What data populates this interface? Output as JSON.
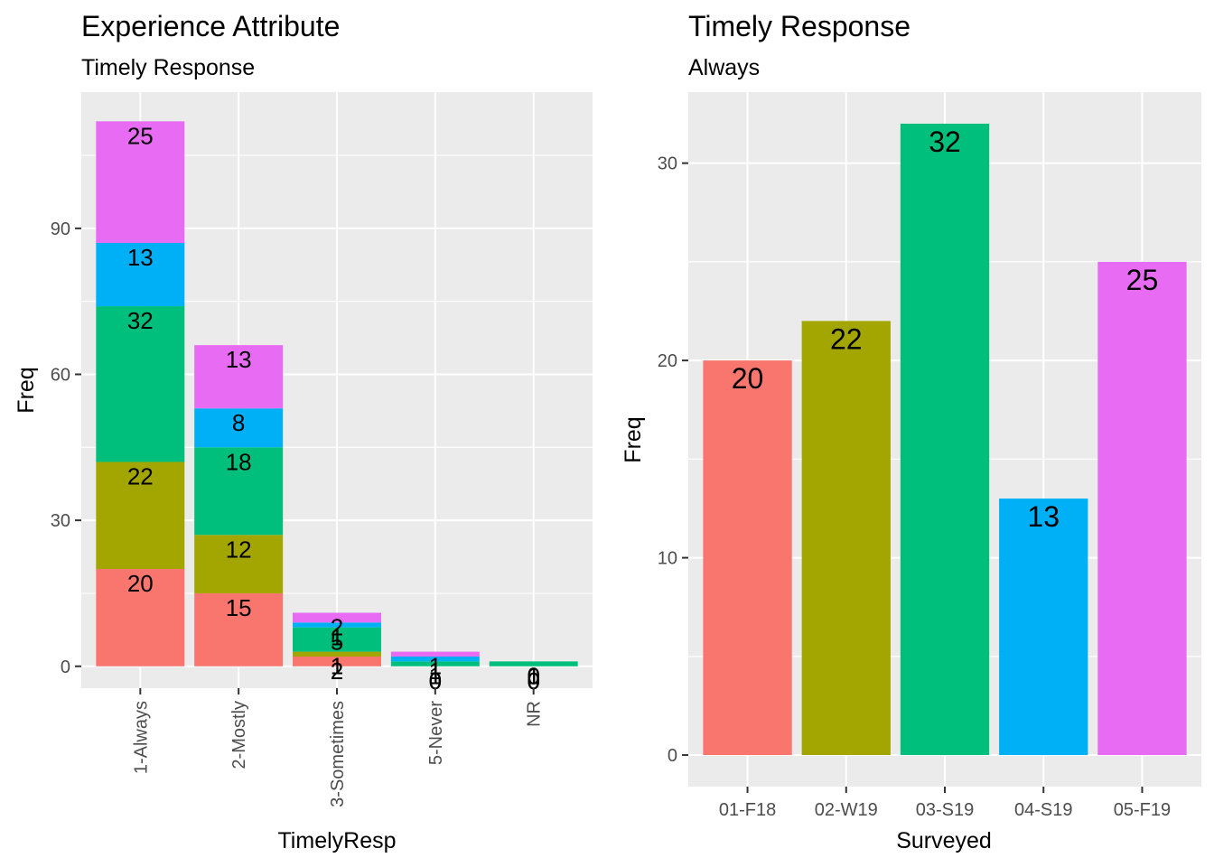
{
  "colors": {
    "panel_bg": "#EBEBEB",
    "grid_major": "#FFFFFF",
    "tick_color": "#333333",
    "series": [
      "#F8766D",
      "#A3A500",
      "#00BF7D",
      "#00B0F6",
      "#E76BF3"
    ]
  },
  "chart_data": [
    {
      "type": "bar",
      "stacked": true,
      "title": "Experience Attribute",
      "subtitle": "Timely Response",
      "xlabel": "TimelyResp",
      "ylabel": "Freq",
      "categories": [
        "1-Always",
        "2-Mostly",
        "3-Sometimes",
        "5-Never",
        "NR"
      ],
      "ylim": [
        -4.5,
        118
      ],
      "yticks": [
        0,
        30,
        60,
        90
      ],
      "series": [
        {
          "values": [
            20,
            15,
            2,
            0,
            0
          ]
        },
        {
          "values": [
            22,
            12,
            1,
            0,
            0
          ]
        },
        {
          "values": [
            32,
            18,
            5,
            1,
            1
          ]
        },
        {
          "values": [
            13,
            8,
            1,
            1,
            0
          ]
        },
        {
          "values": [
            25,
            13,
            2,
            1,
            0
          ]
        }
      ]
    },
    {
      "type": "bar",
      "stacked": false,
      "title": "Timely Response",
      "subtitle": "Always",
      "xlabel": "Surveyed",
      "ylabel": "Freq",
      "categories": [
        "01-F18",
        "02-W19",
        "03-S19",
        "04-S19",
        "05-F19"
      ],
      "values": [
        20,
        22,
        32,
        13,
        25
      ],
      "ylim": [
        -1.6,
        33.6
      ],
      "yticks": [
        0,
        10,
        20,
        30
      ]
    }
  ]
}
